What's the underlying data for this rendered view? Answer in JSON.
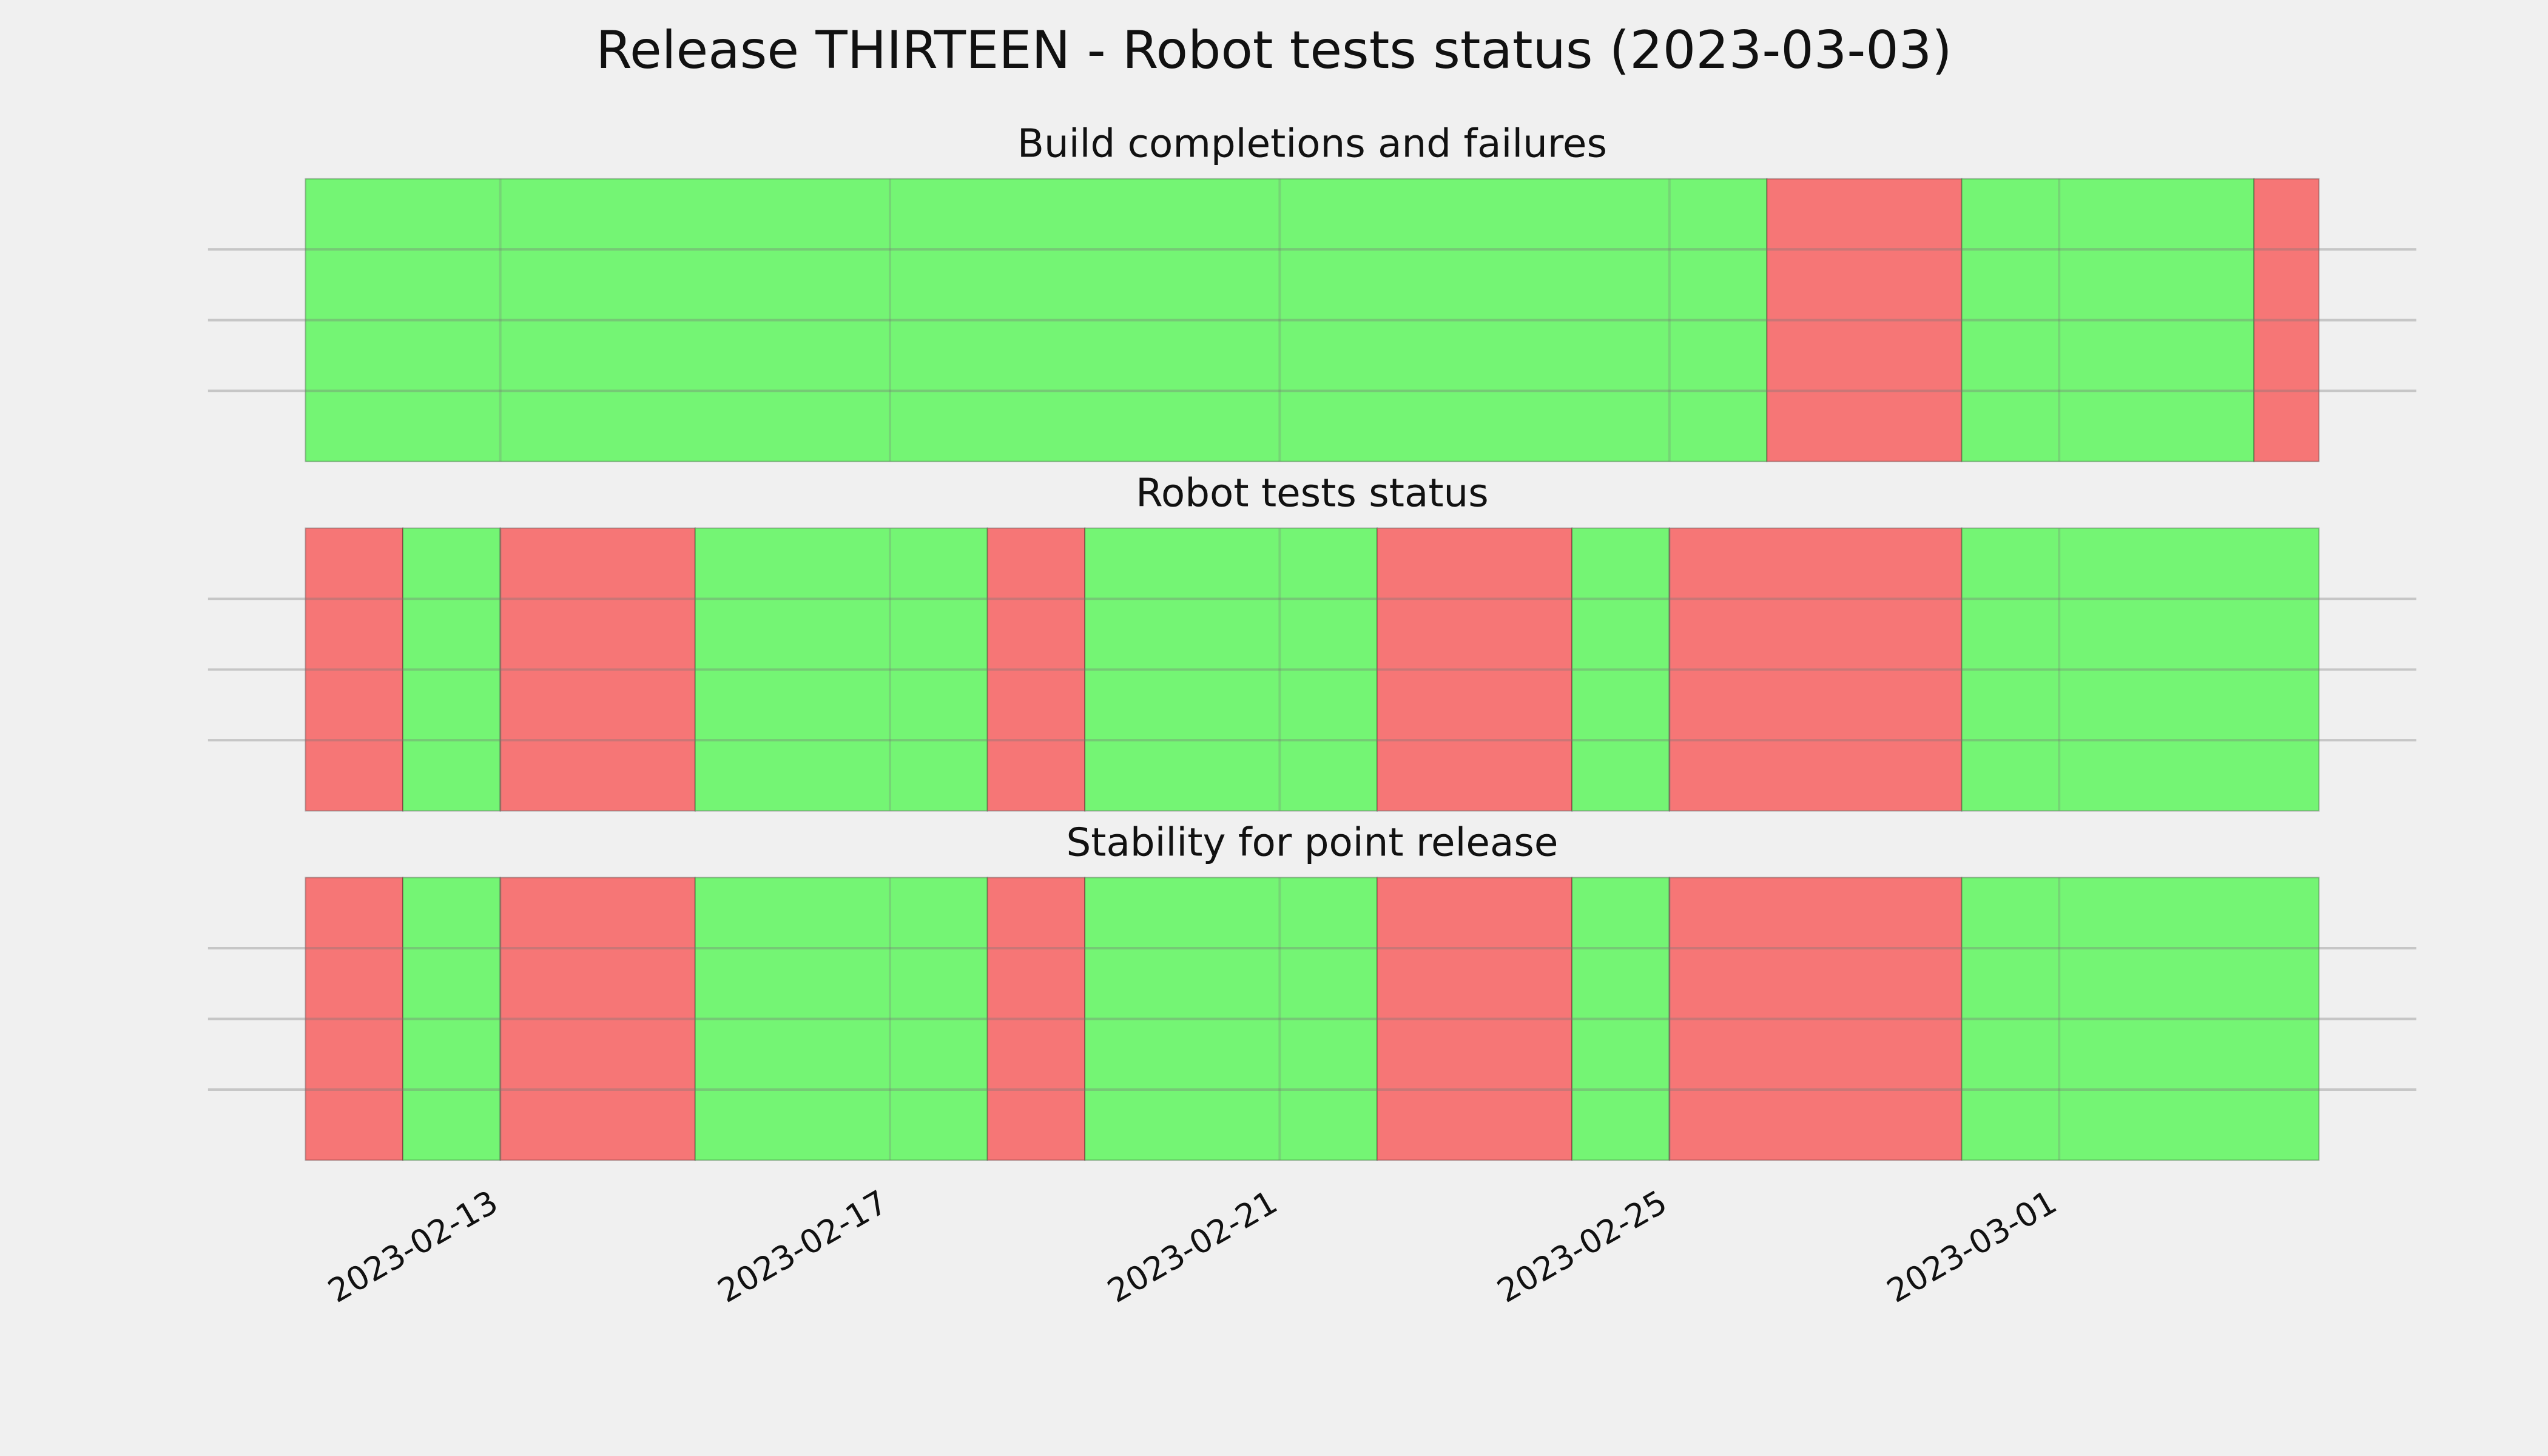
{
  "title": "Release THIRTEEN - Robot tests status (2023-03-03)",
  "chart_data": [
    {
      "type": "timeline",
      "title": "Build completions and failures",
      "x": [
        "2023-02-11",
        "2023-02-26",
        "2023-02-28",
        "2023-03-03",
        "2023-03-03 16:00"
      ],
      "colors": [
        "#74f574",
        "#f67676",
        "#74f574",
        "#f67676"
      ],
      "xlim": [
        "2023-02-10",
        "2023-03-04 16:00"
      ],
      "xticks": [
        "2023-02-13",
        "2023-02-17",
        "2023-02-21",
        "2023-02-25",
        "2023-03-01"
      ],
      "grid": true
    },
    {
      "type": "timeline",
      "title": "Robot tests status",
      "x": [
        "2023-02-11",
        "2023-02-12",
        "2023-02-13",
        "2023-02-15",
        "2023-02-18",
        "2023-02-19",
        "2023-02-22",
        "2023-02-24",
        "2023-02-25",
        "2023-02-28",
        "2023-03-03 16:00"
      ],
      "colors": [
        "#f67676",
        "#74f574",
        "#f67676",
        "#74f574",
        "#f67676",
        "#74f574",
        "#f67676",
        "#74f574",
        "#f67676",
        "#74f574"
      ],
      "xlim": [
        "2023-02-10",
        "2023-03-04 16:00"
      ],
      "xticks": [
        "2023-02-13",
        "2023-02-17",
        "2023-02-21",
        "2023-02-25",
        "2023-03-01"
      ],
      "grid": true
    },
    {
      "type": "timeline",
      "title": "Stability for point release",
      "x": [
        "2023-02-11",
        "2023-02-12",
        "2023-02-13",
        "2023-02-15",
        "2023-02-18",
        "2023-02-19",
        "2023-02-22",
        "2023-02-24",
        "2023-02-25",
        "2023-02-28",
        "2023-03-03 16:00"
      ],
      "colors": [
        "#f67676",
        "#74f574",
        "#f67676",
        "#74f574",
        "#f67676",
        "#74f574",
        "#f67676",
        "#74f574",
        "#f67676",
        "#74f574"
      ],
      "xlim": [
        "2023-02-10",
        "2023-03-04 16:00"
      ],
      "xticks": [
        "2023-02-13",
        "2023-02-17",
        "2023-02-21",
        "2023-02-25",
        "2023-03-01"
      ],
      "grid": true
    }
  ]
}
